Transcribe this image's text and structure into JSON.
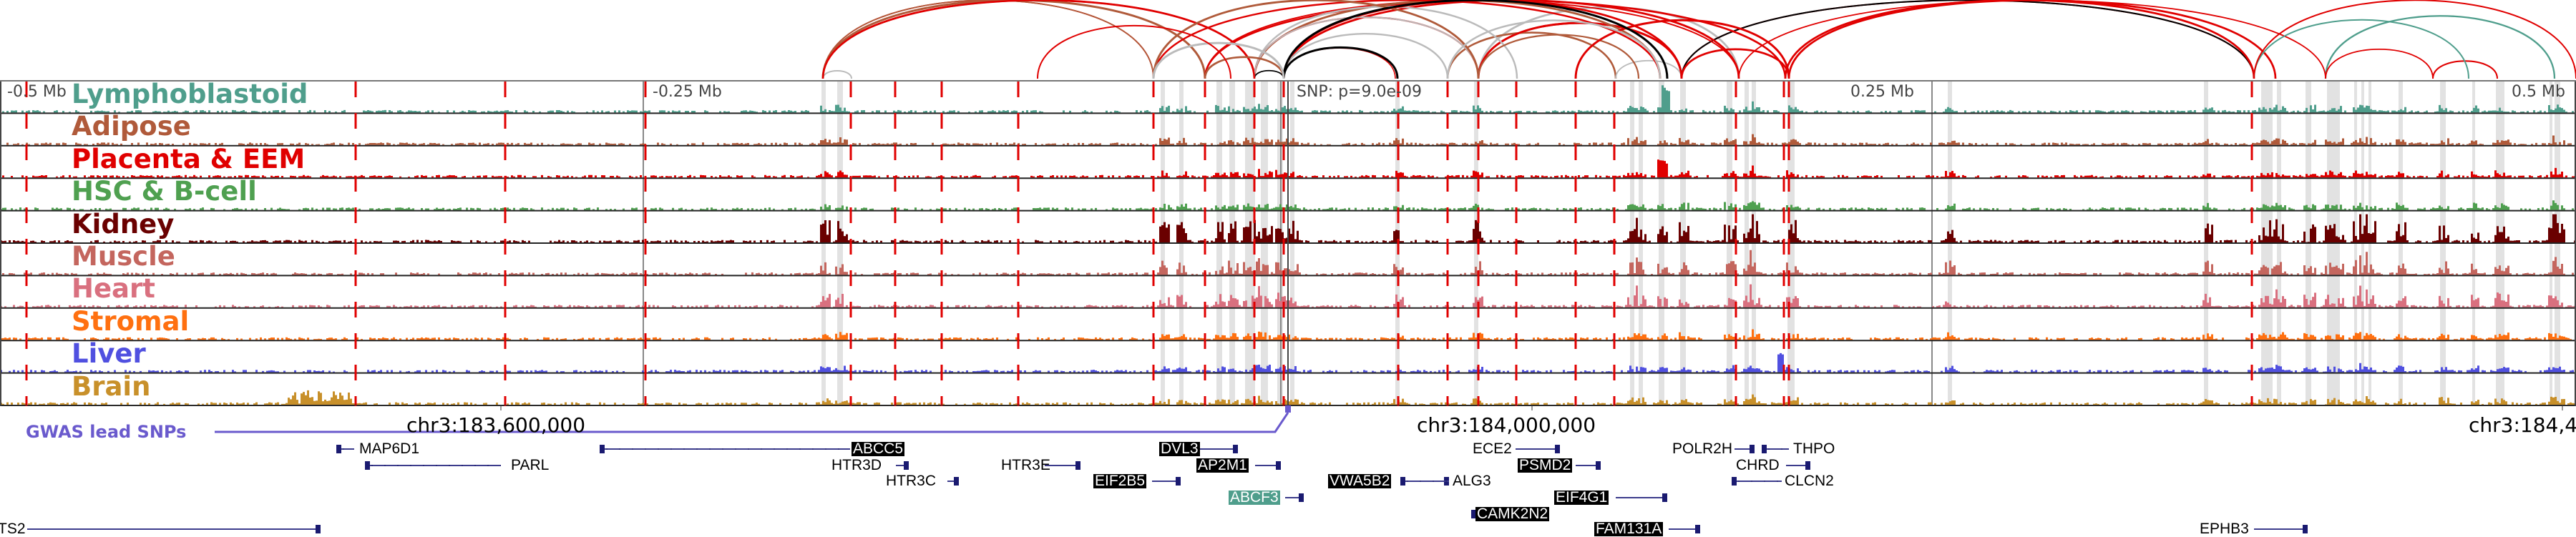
{
  "axis": {
    "left_label": "-0.5 Mb",
    "mid_left_label": "-0.25 Mb",
    "snp_label": "SNP: p=9.0e-09",
    "mid_right_label": "0.25 Mb",
    "right_label": "0.5 Mb"
  },
  "tracks": [
    {
      "label": "Lymphoblastoid",
      "color": "#4f9e8c"
    },
    {
      "label": "Adipose",
      "color": "#b05a3a"
    },
    {
      "label": "Placenta & EEM",
      "color": "#e00000"
    },
    {
      "label": "HSC & B-cell",
      "color": "#4fa050"
    },
    {
      "label": "Kidney",
      "color": "#6a0000"
    },
    {
      "label": "Muscle",
      "color": "#c4665e"
    },
    {
      "label": "Heart",
      "color": "#d9707f"
    },
    {
      "label": "Stromal",
      "color": "#ff7010"
    },
    {
      "label": "Liver",
      "color": "#5050e0"
    },
    {
      "label": "Brain",
      "color": "#c8902a"
    }
  ],
  "coordinates": [
    "chr3:183,600,000",
    "chr3:184,000,000",
    "chr3:184,4"
  ],
  "gwas": {
    "label": "GWAS lead SNPs",
    "color": "#6a5acd"
  },
  "genes": [
    {
      "name": "MAP6D1",
      "strand": "-",
      "style": "plain"
    },
    {
      "name": "PARL",
      "strand": "-",
      "style": "plain"
    },
    {
      "name": "ABCC5",
      "strand": "-",
      "style": "highlight"
    },
    {
      "name": "HTR3D",
      "strand": "+",
      "style": "plain"
    },
    {
      "name": "HTR3C",
      "strand": "+",
      "style": "plain"
    },
    {
      "name": "HTR3E",
      "strand": "+",
      "style": "plain"
    },
    {
      "name": "DVL3",
      "strand": "+",
      "style": "highlight"
    },
    {
      "name": "AP2M1",
      "strand": "+",
      "style": "highlight"
    },
    {
      "name": "EIF2B5",
      "strand": "+",
      "style": "highlight"
    },
    {
      "name": "ABCF3",
      "strand": "+",
      "style": "teal"
    },
    {
      "name": "VWA5B2",
      "strand": "+",
      "style": "highlight"
    },
    {
      "name": "ALG3",
      "strand": "-",
      "style": "plain"
    },
    {
      "name": "ECE2",
      "strand": "+",
      "style": "plain"
    },
    {
      "name": "PSMD2",
      "strand": "+",
      "style": "highlight"
    },
    {
      "name": "EIF4G1",
      "strand": "+",
      "style": "highlight"
    },
    {
      "name": "CAMK2N2",
      "strand": "-",
      "style": "highlight"
    },
    {
      "name": "FAM131A",
      "strand": "+",
      "style": "highlight"
    },
    {
      "name": "POLR2H",
      "strand": "+",
      "style": "plain"
    },
    {
      "name": "THPO",
      "strand": "-",
      "style": "plain"
    },
    {
      "name": "CHRD",
      "strand": "+",
      "style": "plain"
    },
    {
      "name": "CLCN2",
      "strand": "-",
      "style": "plain"
    },
    {
      "name": "EPHB3",
      "strand": "+",
      "style": "plain"
    },
    {
      "name": "TS2",
      "strand": "+",
      "style": "plain"
    }
  ]
}
